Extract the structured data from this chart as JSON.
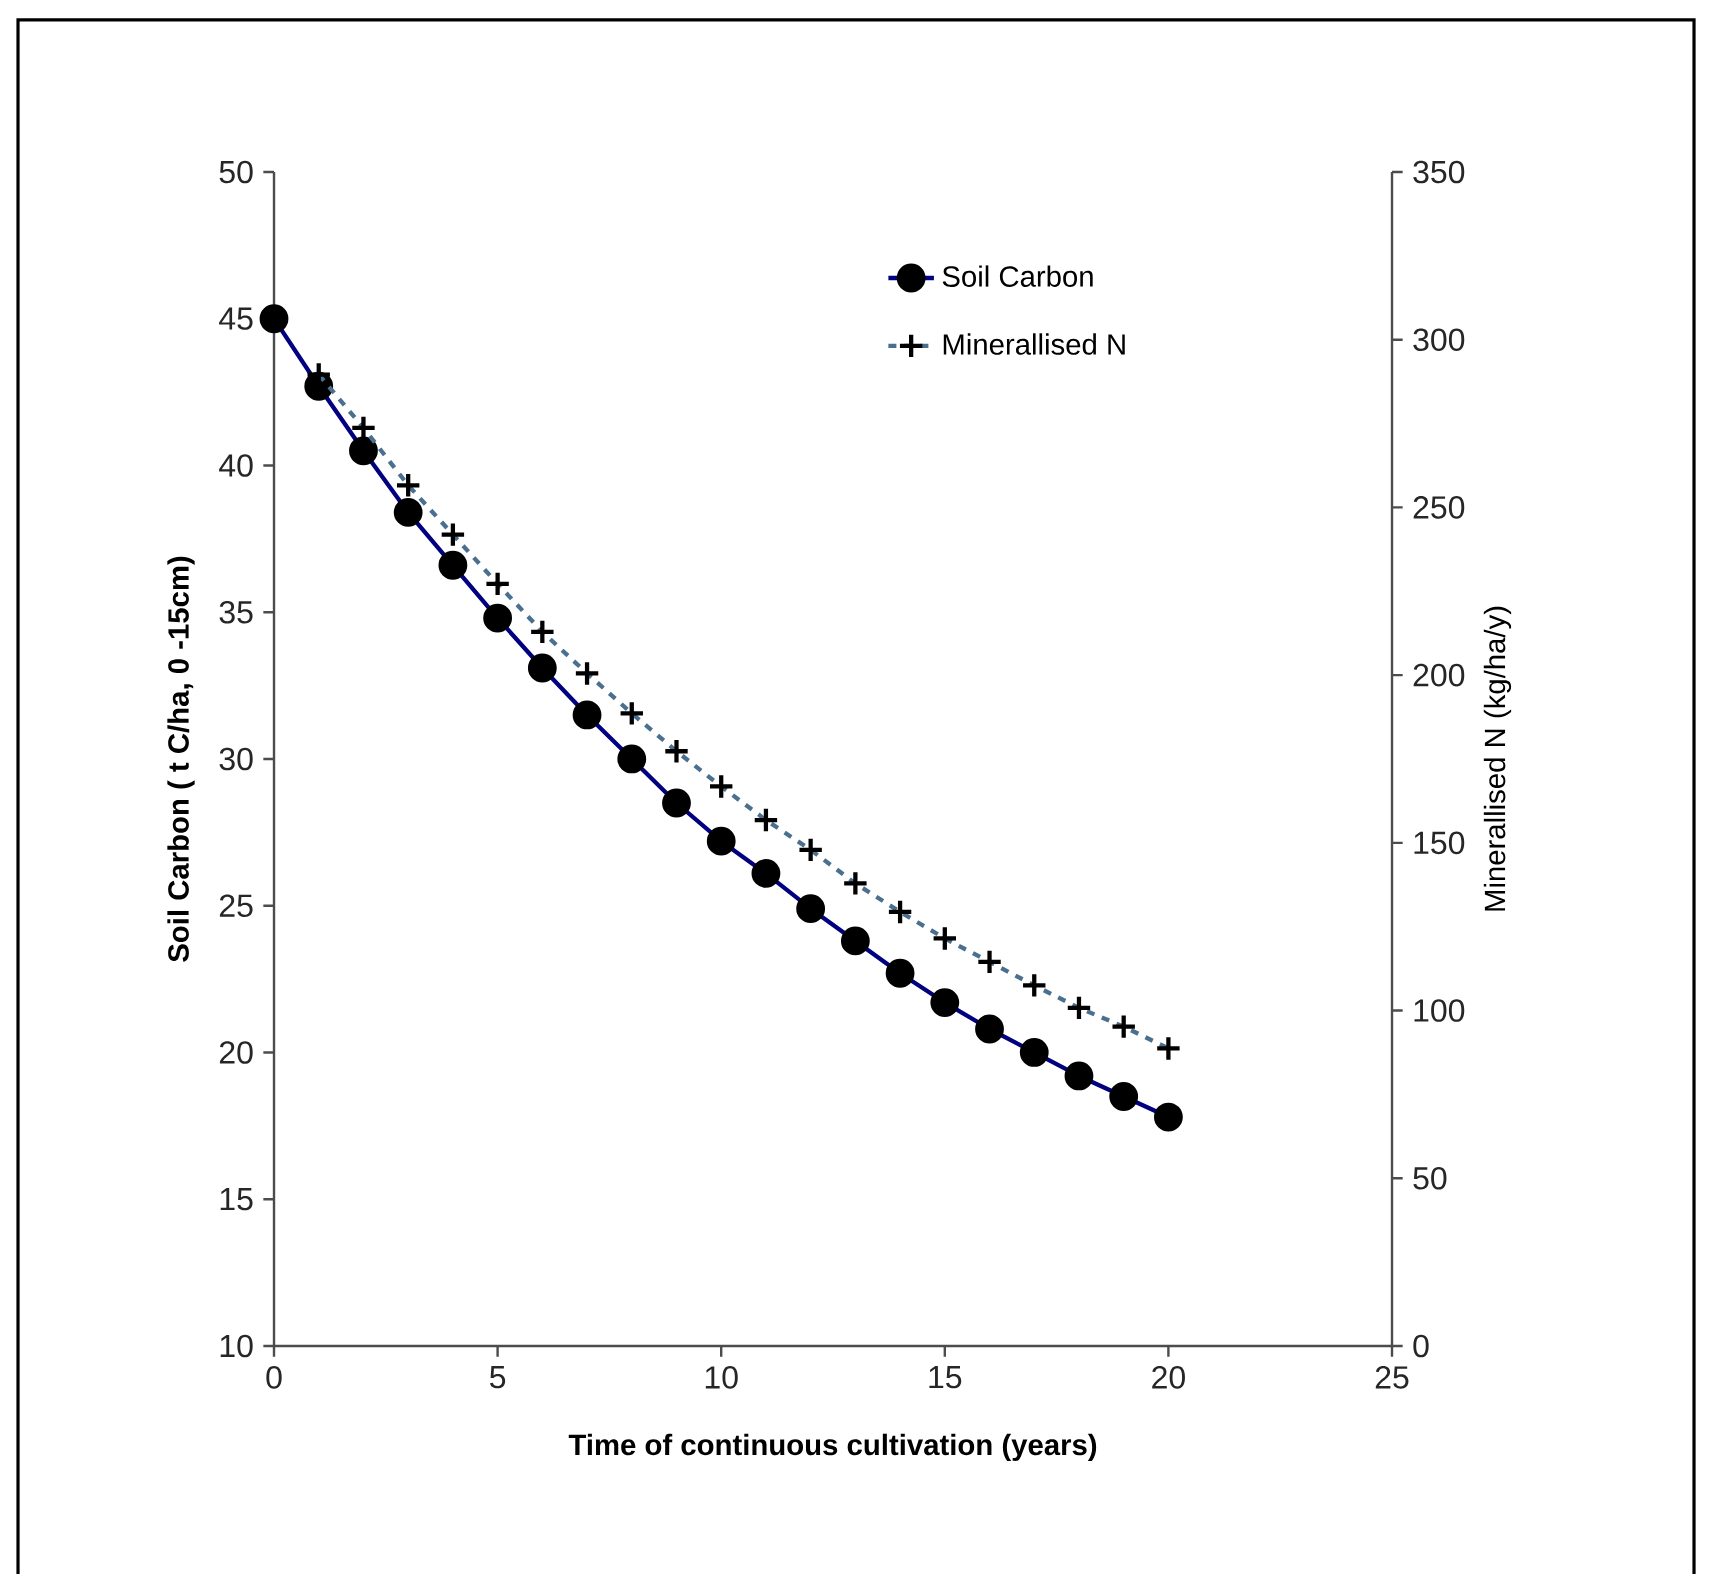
{
  "chart_data": {
    "type": "line",
    "xlabel": "Time of continuous cultivation (years)",
    "ylabel": "Soil Carbon ( t C/ha, 0 -15cm)",
    "y2label": "Minerallised  N (kg/ha/y)",
    "xlim": [
      0,
      25
    ],
    "xticks": [
      0,
      5,
      10,
      15,
      20,
      25
    ],
    "ylim": [
      10,
      50
    ],
    "yticks": [
      10,
      15,
      20,
      25,
      30,
      35,
      40,
      45,
      50
    ],
    "y2lim": [
      0,
      350
    ],
    "y2ticks": [
      0,
      50,
      100,
      150,
      200,
      250,
      300,
      350
    ],
    "legend": "top right",
    "grid": false,
    "series": [
      {
        "name": "Soil Carbon",
        "color": "#000080",
        "marker": "circle",
        "line_style": "solid",
        "x": [
          0,
          1,
          2,
          3,
          4,
          5,
          6,
          7,
          8,
          9,
          10,
          11,
          12,
          13,
          14,
          15,
          16,
          17,
          18,
          19,
          20
        ],
        "values": [
          45.0,
          42.7,
          40.5,
          38.4,
          36.6,
          34.8,
          33.1,
          31.5,
          30.0,
          28.5,
          27.2,
          26.1,
          24.9,
          23.8,
          22.7,
          21.7,
          20.8,
          20.0,
          19.2,
          18.5,
          17.8
        ]
      },
      {
        "name": "Minerallised N",
        "color": "#4a6f8f",
        "marker": "cross",
        "line_style": "dashed",
        "axis": "y2",
        "x": [
          1,
          2,
          3,
          4,
          5,
          6,
          7,
          8,
          9,
          10,
          11,
          12,
          13,
          14,
          15,
          16,
          17,
          18,
          19,
          20
        ],
        "values": [
          289.6,
          273.7,
          256.6,
          241.9,
          227.2,
          212.9,
          200.5,
          188.6,
          177.3,
          166.8,
          156.8,
          147.9,
          137.9,
          129.4,
          121.5,
          114.5,
          107.5,
          100.8,
          95.2,
          88.7
        ]
      }
    ]
  }
}
